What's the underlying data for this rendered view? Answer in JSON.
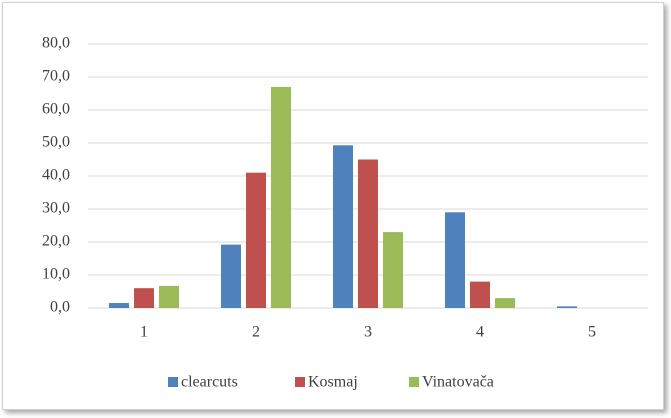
{
  "chart_data": {
    "type": "bar",
    "categories": [
      "1",
      "2",
      "3",
      "4",
      "5"
    ],
    "series": [
      {
        "name": "clearcuts",
        "color": "#4f81bd",
        "values": [
          1.5,
          19.2,
          49.3,
          29.0,
          0.5
        ]
      },
      {
        "name": "Kosmaj",
        "color": "#c0504d",
        "values": [
          6.0,
          41.0,
          45.0,
          8.0,
          0
        ]
      },
      {
        "name": "Vinatovača",
        "color": "#9bbb59",
        "values": [
          6.7,
          67.0,
          23.0,
          3.0,
          0
        ]
      }
    ],
    "ylim": [
      0,
      80
    ],
    "yticks": [
      {
        "value": 0,
        "label": "0,0"
      },
      {
        "value": 10,
        "label": "10,0"
      },
      {
        "value": 20,
        "label": "20,0"
      },
      {
        "value": 30,
        "label": "30,0"
      },
      {
        "value": 40,
        "label": "40,0"
      },
      {
        "value": 50,
        "label": "50,0"
      },
      {
        "value": 60,
        "label": "60,0"
      },
      {
        "value": 70,
        "label": "70,0"
      },
      {
        "value": 80,
        "label": "80,0"
      }
    ],
    "grid": true,
    "legend": "bottom"
  }
}
